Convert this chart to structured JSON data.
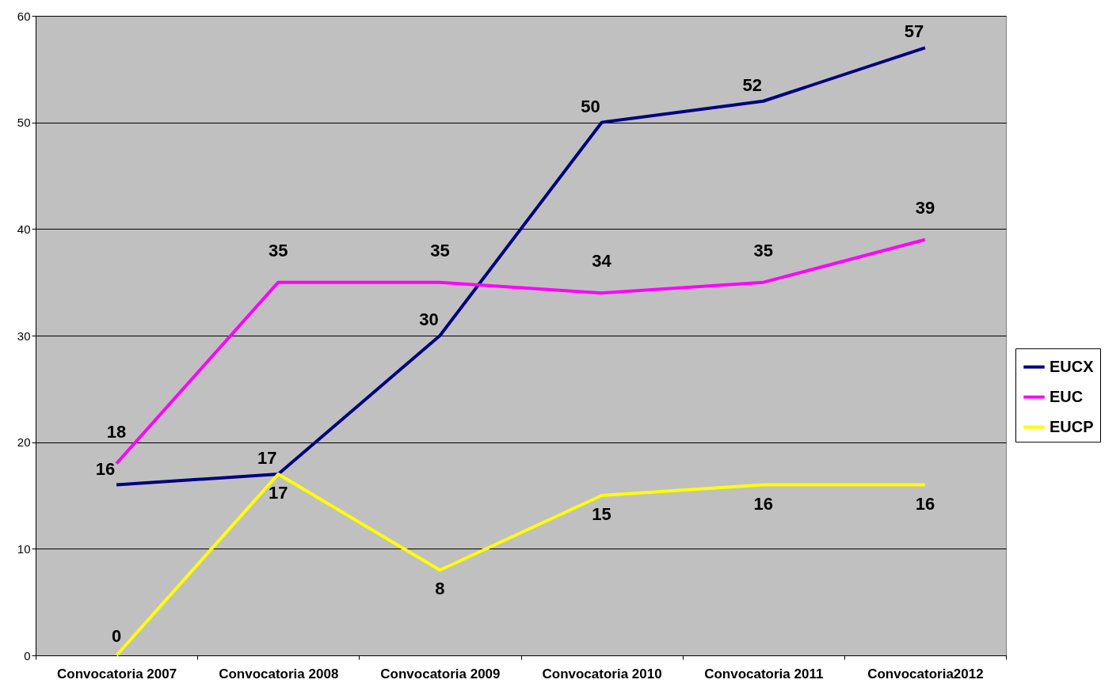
{
  "chart_data": {
    "type": "line",
    "categories": [
      "Convocatoria 2007",
      "Convocatoria 2008",
      "Convocatoria 2009",
      "Convocatoria 2010",
      "Convocatoria 2011",
      "Convocatoria2012"
    ],
    "series": [
      {
        "name": "EUCX",
        "color": "#000080",
        "values": [
          16,
          17,
          30,
          50,
          52,
          57
        ]
      },
      {
        "name": "EUC",
        "color": "#ff00ff",
        "values": [
          18,
          35,
          35,
          34,
          35,
          39
        ]
      },
      {
        "name": "EUCP",
        "color": "#ffff00",
        "values": [
          0,
          17,
          8,
          15,
          16,
          16
        ]
      }
    ],
    "ylim": [
      0,
      60
    ],
    "yticks": [
      0,
      10,
      20,
      30,
      40,
      50,
      60
    ],
    "grid": "y",
    "legend": "right",
    "data_labels": true,
    "marker": "none",
    "line_style": "solid"
  }
}
